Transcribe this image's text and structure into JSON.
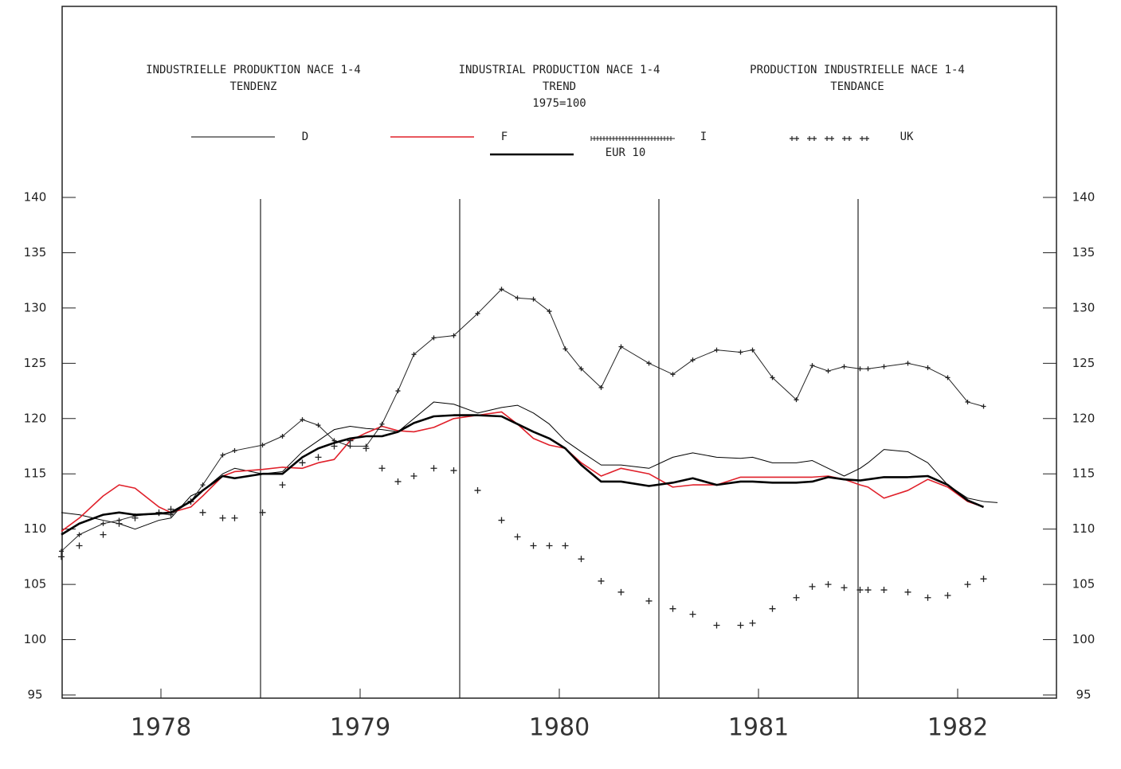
{
  "chart_data": {
    "type": "line",
    "titles": [
      [
        "INDUSTRIELLE PRODUKTION NACE 1-4",
        "TENDENZ"
      ],
      [
        "INDUSTRIAL PRODUCTION NACE 1-4",
        "TREND",
        "1975=100"
      ],
      [
        "PRODUCTION INDUSTRIELLE NACE 1-4",
        "TENDANCE"
      ]
    ],
    "x": [
      1978.0,
      1978.09,
      1978.21,
      1978.29,
      1978.37,
      1978.49,
      1978.55,
      1978.65,
      1978.71,
      1978.81,
      1978.87,
      1979.01,
      1979.11,
      1979.21,
      1979.29,
      1979.37,
      1979.45,
      1979.53,
      1979.61,
      1979.69,
      1979.77,
      1979.87,
      1979.97,
      1980.09,
      1980.21,
      1980.29,
      1980.37,
      1980.45,
      1980.53,
      1980.61,
      1980.71,
      1980.81,
      1980.95,
      1981.07,
      1981.17,
      1981.29,
      1981.41,
      1981.47,
      1981.57,
      1981.69,
      1981.77,
      1981.85,
      1981.93,
      1982.01,
      1982.05,
      1982.13,
      1982.25,
      1982.35,
      1982.45,
      1982.55,
      1982.63,
      1982.7
    ],
    "series": [
      {
        "name": "D",
        "color": "#000000",
        "marker": "line",
        "width": 1,
        "values": [
          111.5,
          111.3,
          110.8,
          110.5,
          110,
          110.8,
          111,
          113,
          113.5,
          115,
          115.5,
          115,
          115.2,
          117,
          118,
          119,
          119.3,
          119.1,
          119,
          118.8,
          120,
          121.5,
          121.3,
          120.5,
          121,
          121.2,
          120.5,
          119.5,
          118,
          117,
          115.8,
          115.8,
          115.5,
          116.5,
          116.9,
          116.5,
          116.4,
          116.5,
          116,
          116,
          116.2,
          115.5,
          114.8,
          115.5,
          116,
          117.2,
          117,
          116,
          114,
          112.8,
          112.5,
          112.4
        ]
      },
      {
        "name": "F",
        "color": "#e0202a",
        "marker": "line",
        "width": 1.6,
        "values": [
          109.8,
          111,
          113,
          114,
          113.7,
          112,
          111.5,
          112,
          113,
          114.8,
          115.2,
          115.4,
          115.6,
          115.5,
          116,
          116.3,
          118,
          118.7,
          119.3,
          118.9,
          118.8,
          119.2,
          120,
          120.3,
          120.6,
          119.5,
          118.2,
          117.6,
          117.3,
          116,
          114.8,
          115.5,
          115,
          113.8,
          114,
          114,
          114.7,
          114.7,
          114.7,
          114.7,
          114.7,
          114.8,
          114.5,
          114,
          113.8,
          112.8,
          113.5,
          114.5,
          113.8,
          112.5,
          112,
          null
        ]
      },
      {
        "name": "I",
        "color": "#222222",
        "marker": "plus-line",
        "width": 1,
        "values": [
          108,
          109.5,
          110.5,
          110.8,
          111.2,
          111.4,
          111.3,
          112.5,
          114,
          116.7,
          117.1,
          117.6,
          118.4,
          119.9,
          119.4,
          118,
          117.5,
          117.5,
          119.5,
          122.5,
          125.8,
          127.3,
          127.5,
          129.5,
          131.7,
          130.9,
          130.8,
          129.7,
          126.3,
          124.5,
          122.8,
          126.5,
          125,
          124,
          125.3,
          126.2,
          126,
          126.2,
          123.7,
          121.7,
          124.8,
          124.3,
          124.7,
          124.5,
          124.5,
          124.7,
          125,
          124.6,
          123.7,
          121.5,
          121.1,
          null
        ]
      },
      {
        "name": "UK",
        "color": "#222222",
        "marker": "plus",
        "width": 1,
        "values": [
          107.5,
          108.5,
          109.5,
          110.5,
          111,
          111.5,
          111.8,
          112.5,
          111.5,
          111,
          111,
          111.5,
          114,
          116,
          116.5,
          117.5,
          118,
          117.3,
          115.5,
          114.3,
          114.8,
          115.5,
          115.3,
          113.5,
          110.8,
          109.3,
          108.5,
          108.5,
          108.5,
          107.3,
          105.3,
          104.3,
          103.5,
          102.8,
          102.3,
          101.3,
          101.3,
          101.5,
          102.8,
          103.8,
          104.8,
          105,
          104.7,
          104.5,
          104.5,
          104.5,
          104.3,
          103.8,
          104,
          105,
          105.5,
          null
        ]
      },
      {
        "name": "EUR 10",
        "color": "#000000",
        "marker": "line",
        "width": 2.6,
        "values": [
          109.5,
          110.5,
          111.3,
          111.5,
          111.3,
          111.4,
          111.5,
          112.5,
          113.5,
          114.8,
          114.6,
          115,
          115,
          116.5,
          117.3,
          117.8,
          118.2,
          118.4,
          118.4,
          118.8,
          119.6,
          120.2,
          120.3,
          120.3,
          120.2,
          119.5,
          118.8,
          118.2,
          117.3,
          115.8,
          114.3,
          114.3,
          113.9,
          114.2,
          114.6,
          114,
          114.3,
          114.3,
          114.2,
          114.2,
          114.3,
          114.7,
          114.5,
          114.4,
          114.5,
          114.7,
          114.7,
          114.8,
          114,
          112.6,
          112,
          null
        ]
      }
    ],
    "xlim": [
      1978,
      1983
    ],
    "xticks": [
      {
        "value": 1978.5,
        "label": "1978"
      },
      {
        "value": 1979.5,
        "label": "1979"
      },
      {
        "value": 1980.5,
        "label": "1980"
      },
      {
        "value": 1981.5,
        "label": "1981"
      },
      {
        "value": 1982.5,
        "label": "1982"
      }
    ],
    "x_gridlines": [
      1979,
      1980,
      1981,
      1982
    ],
    "ylim": [
      95,
      140
    ],
    "yticks": [
      95,
      100,
      105,
      110,
      115,
      120,
      125,
      130,
      135,
      140
    ]
  }
}
